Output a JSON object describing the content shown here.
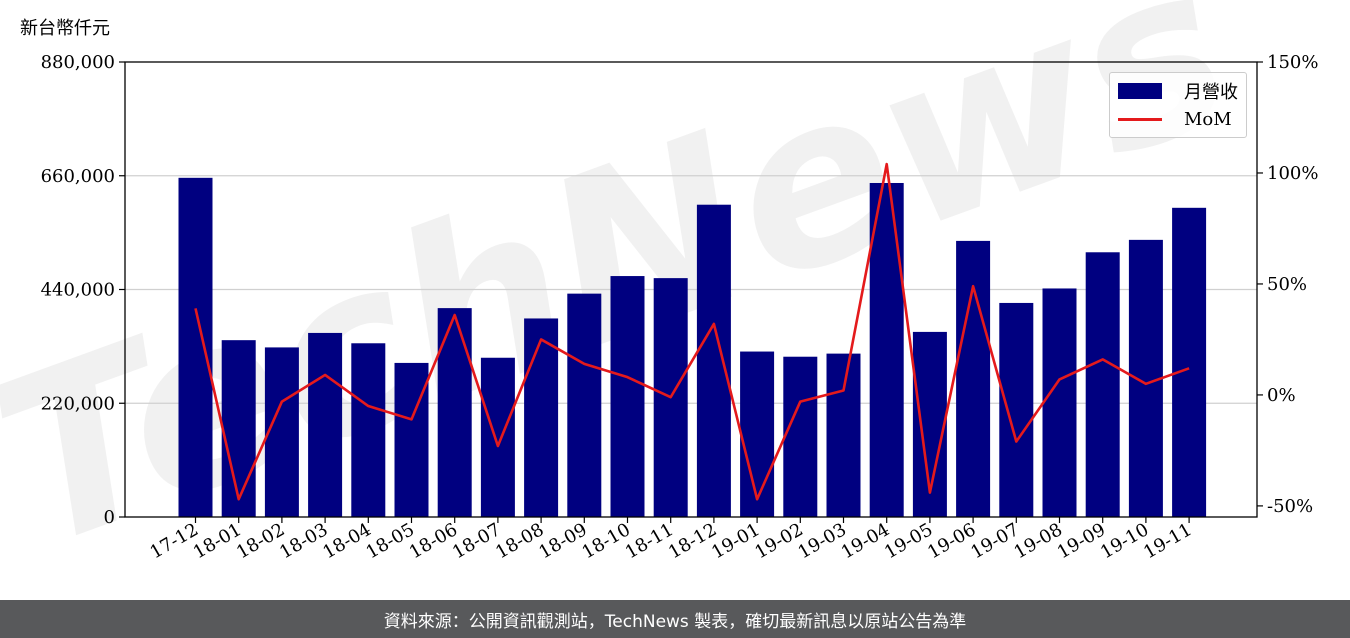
{
  "y_unit_label": "新台幣仟元",
  "footer_text": "資料來源：公開資訊觀測站，TechNews 製表，確切最新訊息以原站公告為準",
  "watermark_text": "TechNews",
  "colors": {
    "bar": "#000080",
    "line": "#e41a1c",
    "grid": "#d0d0d0",
    "footer_bg": "#58595b"
  },
  "legend": {
    "position": "top-right",
    "bar_label": "月營收",
    "line_label": "MoM"
  },
  "chart_data": {
    "type": "bar",
    "categories": [
      "17-12",
      "18-01",
      "18-02",
      "18-03",
      "18-04",
      "18-05",
      "18-06",
      "18-07",
      "18-08",
      "18-09",
      "18-10",
      "18-11",
      "18-12",
      "19-01",
      "19-02",
      "19-03",
      "19-04",
      "19-05",
      "19-06",
      "19-07",
      "19-08",
      "19-09",
      "19-10",
      "19-11"
    ],
    "series": [
      {
        "name": "月營收",
        "type": "bar",
        "axis": "left",
        "values": [
          656000,
          342000,
          328000,
          356000,
          336000,
          298000,
          404000,
          308000,
          384000,
          432000,
          466000,
          462000,
          604000,
          320000,
          310000,
          316000,
          646000,
          358000,
          534000,
          414000,
          442000,
          512000,
          536000,
          598000
        ]
      },
      {
        "name": "MoM",
        "type": "line",
        "axis": "right",
        "unit": "%",
        "values": [
          39,
          -47,
          -3,
          9,
          -5,
          -11,
          36,
          -23,
          25,
          14,
          8,
          -1,
          32,
          -47,
          -3,
          2,
          104,
          -44,
          49,
          -21,
          7,
          16,
          5,
          12
        ]
      }
    ],
    "y_left": {
      "ticks": [
        0,
        220000,
        440000,
        660000,
        880000
      ],
      "tick_labels": [
        "0",
        "220,000",
        "440,000",
        "660,000",
        "880,000"
      ],
      "lim": [
        0,
        880000
      ]
    },
    "y_right": {
      "ticks": [
        -50,
        0,
        50,
        100,
        150
      ],
      "tick_labels": [
        "-50%",
        "0%",
        "50%",
        "100%",
        "150%"
      ],
      "lim": [
        -55,
        150
      ]
    },
    "grid": true
  }
}
